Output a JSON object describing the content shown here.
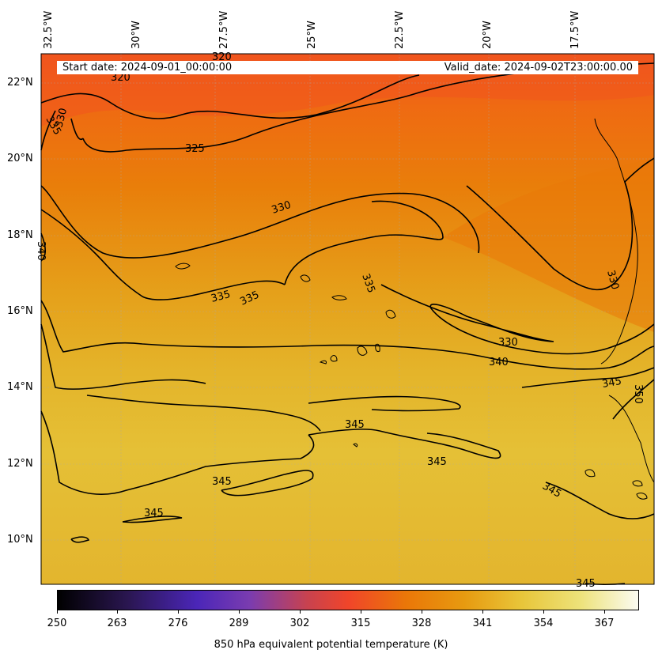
{
  "header": {
    "start_date": "Start date: 2024-09-01_00:00:00",
    "valid_date": "Valid_date: 2024-09-02T23:00:00.00"
  },
  "axes": {
    "longitude_labels": [
      "32.5°W",
      "30°W",
      "27.5°W",
      "25°W",
      "22.5°W",
      "20°W",
      "17.5°W"
    ],
    "latitude_labels": [
      "22°N",
      "20°N",
      "18°N",
      "16°N",
      "14°N",
      "12°N",
      "10°N"
    ]
  },
  "contour_labels": [
    "320",
    "320",
    "335",
    "330",
    "325",
    "330",
    "340",
    "335",
    "335",
    "335",
    "330",
    "330",
    "340",
    "345",
    "350",
    "345",
    "345",
    "345",
    "345",
    "345",
    "345"
  ],
  "colorbar": {
    "ticks": [
      "250",
      "263",
      "276",
      "289",
      "302",
      "315",
      "328",
      "341",
      "354",
      "367"
    ],
    "label": "850 hPa equivalent potential temperature (K)",
    "colors": [
      "#000000",
      "#4b26b8",
      "#f0452a",
      "#ea7708",
      "#e8c63a",
      "#fbfbf1"
    ]
  },
  "field_colors": {
    "warm_north": "#f25a22",
    "mid": "#e97d0a",
    "south": "#e6b52c"
  }
}
